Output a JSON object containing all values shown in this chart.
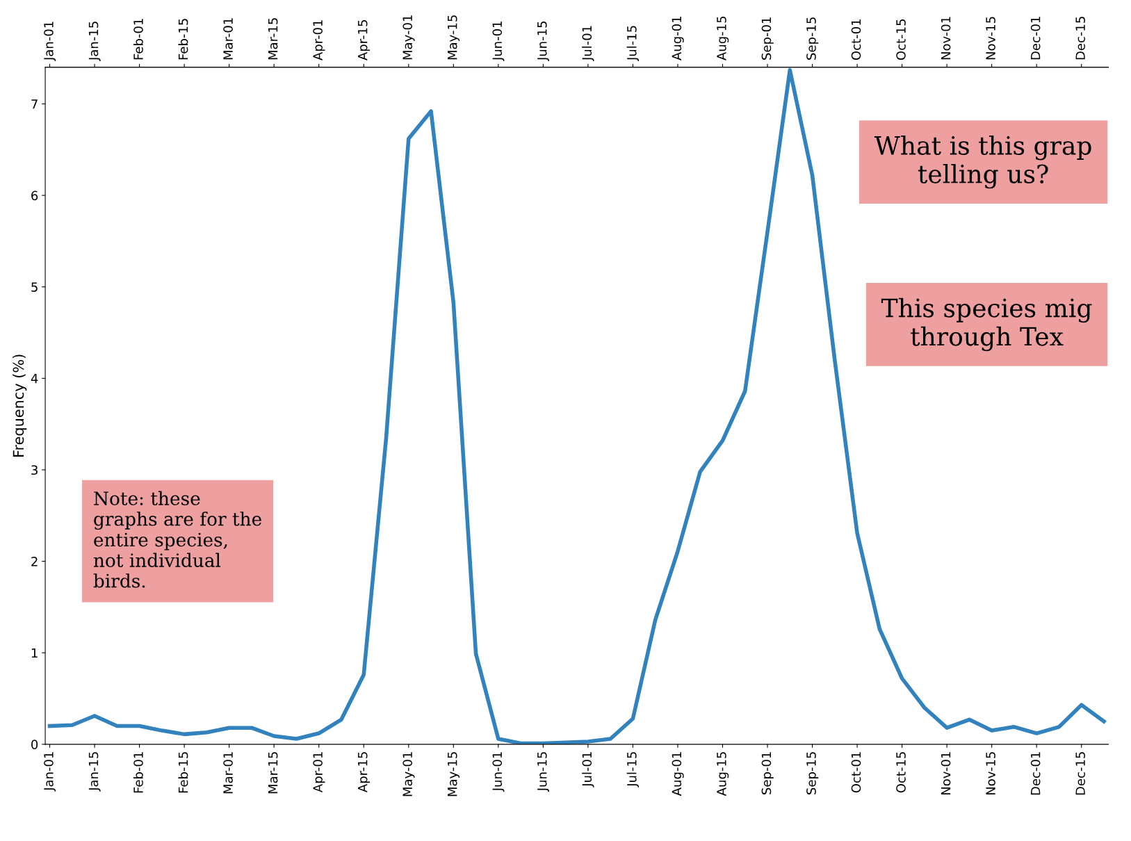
{
  "chart_data": {
    "type": "line",
    "ylabel": "Frequency (%)",
    "categories": [
      "Jan-01",
      null,
      "Jan-15",
      null,
      "Feb-01",
      null,
      "Feb-15",
      null,
      "Mar-01",
      null,
      "Mar-15",
      null,
      "Apr-01",
      null,
      "Apr-15",
      null,
      "May-01",
      null,
      "May-15",
      null,
      "Jun-01",
      null,
      "Jun-15",
      null,
      "Jul-01",
      null,
      "Jul-15",
      null,
      "Aug-01",
      null,
      "Aug-15",
      null,
      "Sep-01",
      null,
      "Sep-15",
      null,
      "Oct-01",
      null,
      "Oct-15",
      null,
      "Nov-01",
      null,
      "Nov-15",
      null,
      "Dec-01",
      null,
      "Dec-15",
      null
    ],
    "series": [
      {
        "color": "#3182bd",
        "values": [
          0.2,
          0.21,
          0.31,
          0.2,
          0.2,
          0.15,
          0.11,
          0.13,
          0.18,
          0.18,
          0.09,
          0.06,
          0.12,
          0.27,
          0.76,
          3.35,
          6.62,
          6.92,
          4.83,
          0.99,
          0.06,
          0.01,
          0.01,
          0.02,
          0.03,
          0.06,
          0.28,
          1.36,
          2.11,
          2.98,
          3.32,
          3.86,
          5.6,
          7.37,
          6.22,
          4.2,
          2.31,
          1.26,
          0.72,
          0.4,
          0.18,
          0.27,
          0.15,
          0.19,
          0.12,
          0.19,
          0.43,
          0.25
        ]
      }
    ],
    "ylim": [
      0,
      7.4
    ],
    "yticks": [
      0,
      1,
      2,
      3,
      4,
      5,
      6,
      7
    ],
    "grid": false,
    "legend": false,
    "marker": "none",
    "line_style": "solid",
    "annotations": [
      "What is this grap\ntelling us?",
      "This species mig\nthrough Tex",
      "Note: these\ngraphs are for the\nentire species,\nnot individual\nbirds."
    ]
  }
}
